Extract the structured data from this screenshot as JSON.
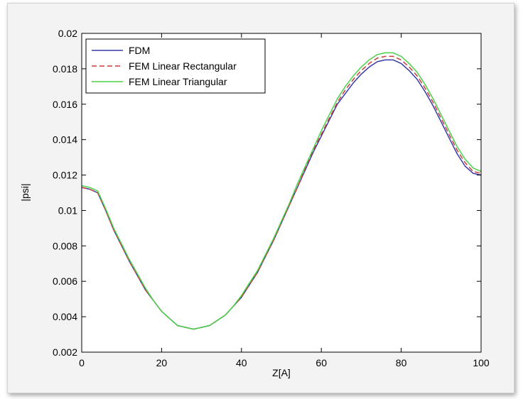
{
  "chart_data": {
    "type": "line",
    "title": "",
    "xlabel": "Z[A]",
    "ylabel": "|psi|",
    "xlim": [
      0,
      100
    ],
    "ylim": [
      0.002,
      0.02
    ],
    "grid": false,
    "legend_position": "top-left",
    "x_ticks": [
      0,
      20,
      40,
      60,
      80,
      100
    ],
    "x_tick_labels": [
      "0",
      "20",
      "40",
      "60",
      "80",
      "100"
    ],
    "y_ticks": [
      0.002,
      0.004,
      0.006,
      0.008,
      0.01,
      0.012,
      0.014,
      0.016,
      0.018,
      0.02
    ],
    "y_tick_labels": [
      "0.002",
      "0.004",
      "0.006",
      "0.008",
      "0.01",
      "0.012",
      "0.014",
      "0.016",
      "0.018",
      "0.02"
    ],
    "x": [
      0,
      2,
      4,
      6,
      8,
      10,
      12,
      14,
      16,
      18,
      20,
      22,
      24,
      26,
      28,
      30,
      32,
      34,
      36,
      38,
      40,
      42,
      44,
      46,
      48,
      50,
      52,
      54,
      56,
      58,
      60,
      62,
      64,
      66,
      68,
      70,
      72,
      74,
      76,
      78,
      80,
      82,
      84,
      86,
      88,
      90,
      92,
      94,
      96,
      98,
      100
    ],
    "series": [
      {
        "name": "FDM",
        "color": "#3a3aa8",
        "dash": "solid",
        "values": [
          0.0113,
          0.0112,
          0.011,
          0.01,
          0.0089,
          0.008,
          0.0071,
          0.0063,
          0.0055,
          0.0049,
          0.0043,
          0.0039,
          0.0035,
          0.0034,
          0.0033,
          0.0034,
          0.0035,
          0.0038,
          0.0041,
          0.0046,
          0.0051,
          0.0058,
          0.0065,
          0.0074,
          0.0083,
          0.0093,
          0.0103,
          0.0113,
          0.0123,
          0.0133,
          0.0142,
          0.0151,
          0.016,
          0.0166,
          0.0172,
          0.0177,
          0.0181,
          0.0184,
          0.0185,
          0.0185,
          0.0183,
          0.0179,
          0.0174,
          0.0167,
          0.0159,
          0.015,
          0.0141,
          0.0132,
          0.0125,
          0.0121,
          0.012
        ]
      },
      {
        "name": "FEM Linear Rectangular",
        "color": "#c83c3c",
        "dash": "dashed",
        "values": [
          0.0113,
          0.0112,
          0.011,
          0.01,
          0.0089,
          0.008,
          0.0071,
          0.0063,
          0.0055,
          0.0049,
          0.0043,
          0.0039,
          0.0035,
          0.0034,
          0.0033,
          0.0034,
          0.0035,
          0.0038,
          0.0041,
          0.0046,
          0.0051,
          0.0058,
          0.0065,
          0.0074,
          0.0083,
          0.0093,
          0.0103,
          0.0113,
          0.0124,
          0.0134,
          0.0143,
          0.0152,
          0.0161,
          0.0168,
          0.0174,
          0.0179,
          0.0183,
          0.0186,
          0.0187,
          0.0187,
          0.0185,
          0.0181,
          0.0176,
          0.0169,
          0.0161,
          0.0152,
          0.0143,
          0.0134,
          0.0127,
          0.0122,
          0.0121
        ]
      },
      {
        "name": "FEM Linear Triangular",
        "color": "#4ad24a",
        "dash": "solid",
        "values": [
          0.0114,
          0.0113,
          0.0111,
          0.0101,
          0.009,
          0.0081,
          0.0072,
          0.0064,
          0.0056,
          0.0049,
          0.0043,
          0.0039,
          0.0035,
          0.0034,
          0.0033,
          0.0034,
          0.0035,
          0.0038,
          0.0041,
          0.0046,
          0.0052,
          0.0059,
          0.0066,
          0.0075,
          0.0084,
          0.0094,
          0.0104,
          0.0115,
          0.0125,
          0.0135,
          0.0145,
          0.0154,
          0.0163,
          0.017,
          0.0176,
          0.0181,
          0.0185,
          0.0188,
          0.0189,
          0.0189,
          0.0187,
          0.0183,
          0.0178,
          0.0171,
          0.0163,
          0.0154,
          0.0145,
          0.0136,
          0.0129,
          0.0124,
          0.0122
        ]
      }
    ]
  }
}
